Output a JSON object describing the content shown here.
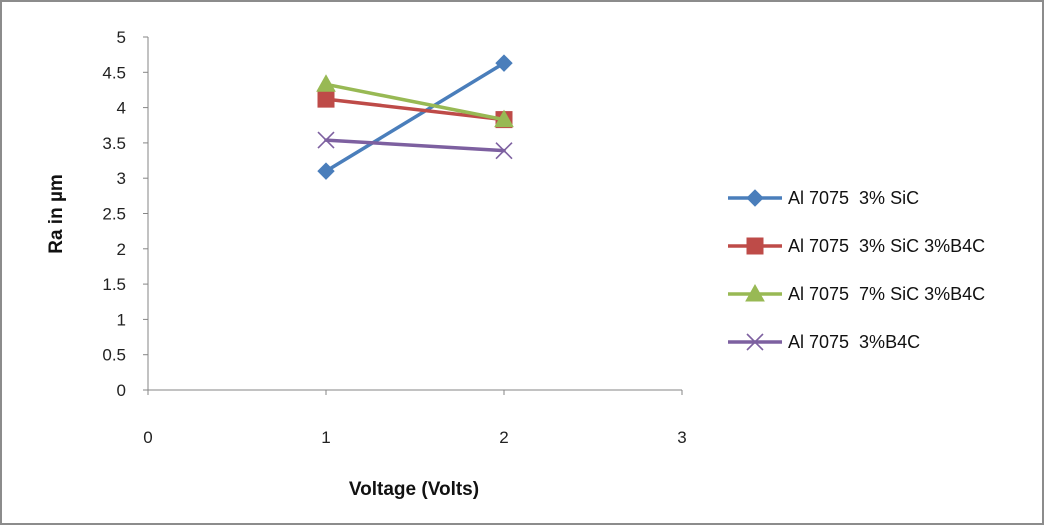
{
  "chart_data": {
    "type": "line",
    "title": "",
    "xlabel": "Voltage (Volts)",
    "ylabel": "Ra in µm",
    "xlim": [
      0,
      3
    ],
    "ylim": [
      0,
      5
    ],
    "x_ticks": [
      "0",
      "1",
      "2",
      "3"
    ],
    "y_ticks": [
      "0",
      "0.5",
      "1",
      "1.5",
      "2",
      "2.5",
      "3",
      "3.5",
      "4",
      "4.5",
      "5"
    ],
    "grid": false,
    "legend_position": "right",
    "series": [
      {
        "name": "Al 7075  3% SiC",
        "color": "#4a7ebb",
        "marker": "diamond",
        "x": [
          1,
          2
        ],
        "values": [
          3.1,
          4.63
        ]
      },
      {
        "name": "Al 7075  3% SiC 3%B4C",
        "color": "#be4b48",
        "marker": "square",
        "x": [
          1,
          2
        ],
        "values": [
          4.12,
          3.83
        ]
      },
      {
        "name": "Al 7075  7% SiC 3%B4C",
        "color": "#98b954",
        "marker": "triangle",
        "x": [
          1,
          2
        ],
        "values": [
          4.33,
          3.83
        ]
      },
      {
        "name": "Al 7075  3%B4C",
        "color": "#7d60a0",
        "marker": "x",
        "x": [
          1,
          2
        ],
        "values": [
          3.54,
          3.39
        ]
      }
    ]
  }
}
